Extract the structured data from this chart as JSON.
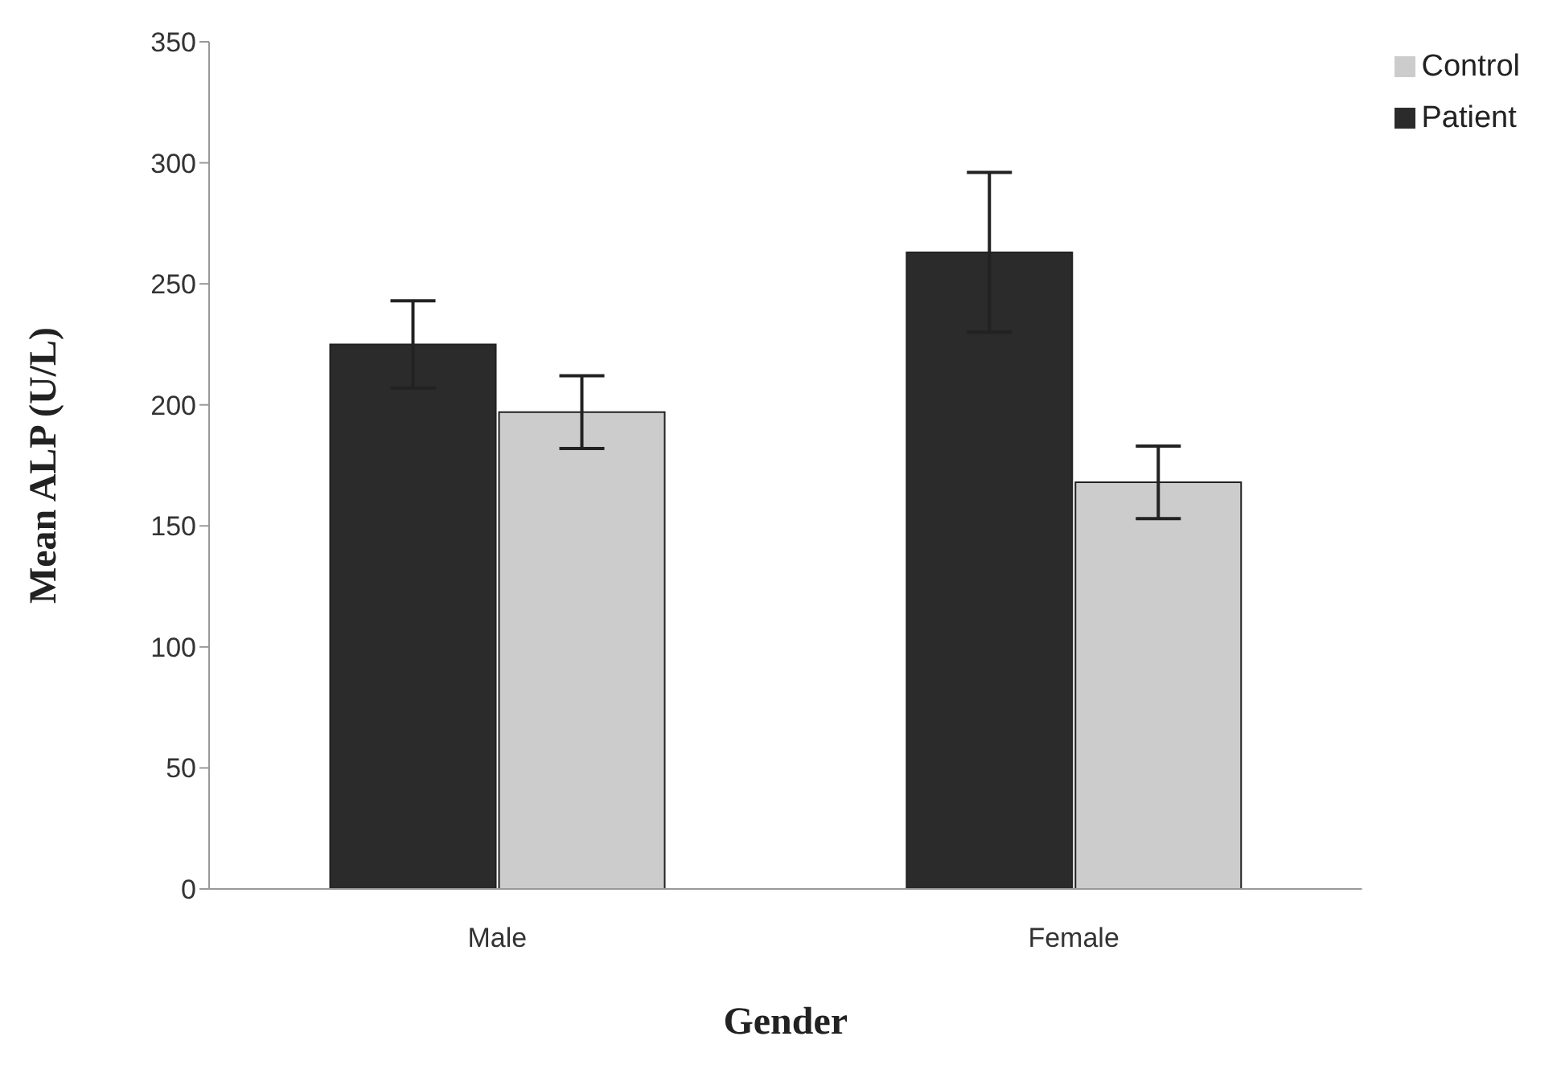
{
  "chart_data": {
    "type": "bar",
    "xlabel": "Gender",
    "ylabel": "Mean ALP (U/L)",
    "categories": [
      "Male",
      "Female"
    ],
    "series": [
      {
        "name": "Patient",
        "color": "#2b2b2b",
        "values": [
          225,
          263
        ],
        "errors": [
          18,
          33
        ]
      },
      {
        "name": "Control",
        "color": "#cccccc",
        "values": [
          197,
          168
        ],
        "errors": [
          15,
          15
        ]
      }
    ],
    "ylim": [
      0,
      350
    ],
    "yticks": [
      0,
      50,
      100,
      150,
      200,
      250,
      300,
      350
    ],
    "grid": false,
    "legend": "top right"
  }
}
